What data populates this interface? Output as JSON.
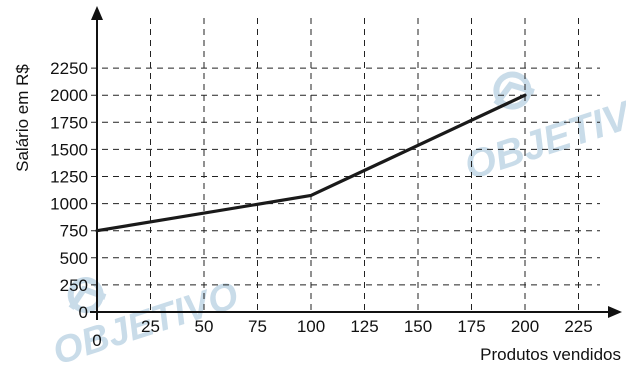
{
  "chart_data": {
    "type": "line",
    "title": "",
    "xlabel": "Produtos vendidos",
    "ylabel": "Salário em R$",
    "x_ticks": [
      0,
      25,
      50,
      75,
      100,
      125,
      150,
      175,
      200,
      225
    ],
    "y_ticks": [
      0,
      250,
      500,
      750,
      1000,
      1250,
      1500,
      1750,
      2000,
      2250
    ],
    "xlim": [
      0,
      250
    ],
    "ylim": [
      0,
      2500
    ],
    "grid": true,
    "series": [
      {
        "x": [
          0,
          100,
          200
        ],
        "y": [
          750,
          1075,
          2000
        ]
      }
    ]
  },
  "watermark": {
    "text": "OBJETIVO",
    "color": "#c9dce9"
  }
}
